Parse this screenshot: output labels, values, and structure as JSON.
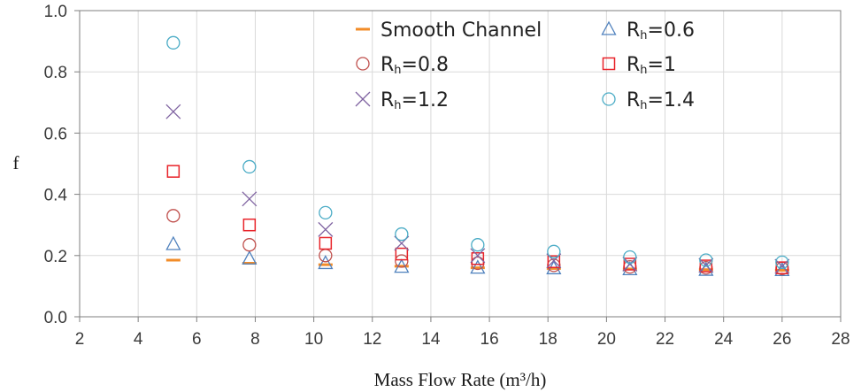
{
  "chart_data": {
    "type": "scatter",
    "title": "",
    "xlabel": "Mass Flow Rate (m³/h)",
    "ylabel": "f",
    "xlim": [
      2,
      28
    ],
    "ylim": [
      0.0,
      1.0
    ],
    "xticks": [
      "2",
      "4",
      "6",
      "8",
      "10",
      "12",
      "14",
      "16",
      "18",
      "20",
      "22",
      "24",
      "26",
      "28"
    ],
    "yticks": [
      "0.0",
      "0.2",
      "0.4",
      "0.6",
      "0.8",
      "1.0"
    ],
    "grid": true,
    "legend_position": "top-right",
    "x": [
      5.2,
      7.8,
      10.4,
      13.0,
      15.6,
      18.2,
      20.8,
      23.4,
      26.0
    ],
    "series": [
      {
        "name": "Smooth Channel",
        "marker": "dash",
        "color": "#F28C28",
        "values": [
          0.185,
          0.175,
          0.17,
          0.165,
          0.16,
          0.158,
          0.156,
          0.154,
          0.152
        ]
      },
      {
        "name": "Rh=0.6",
        "marker": "triangle",
        "color": "#4F81BD",
        "values": [
          0.237,
          0.19,
          0.175,
          0.163,
          0.16,
          0.158,
          0.155,
          0.153,
          0.152
        ]
      },
      {
        "name": "Rh=0.8",
        "marker": "circle",
        "color": "#C0504D",
        "values": [
          0.33,
          0.235,
          0.2,
          0.182,
          0.175,
          0.168,
          0.163,
          0.16,
          0.158
        ]
      },
      {
        "name": "Rh=1",
        "marker": "square",
        "color": "#E8232A",
        "values": [
          0.475,
          0.3,
          0.24,
          0.205,
          0.19,
          0.18,
          0.172,
          0.166,
          0.16
        ]
      },
      {
        "name": "Rh=1.2",
        "marker": "cross",
        "color": "#8064A2",
        "values": [
          0.67,
          0.385,
          0.285,
          0.24,
          0.2,
          0.183,
          0.172,
          0.168,
          0.165
        ]
      },
      {
        "name": "Rh=1.4",
        "marker": "circle",
        "color": "#4BACC6",
        "values": [
          0.895,
          0.49,
          0.34,
          0.27,
          0.235,
          0.213,
          0.195,
          0.185,
          0.178
        ]
      }
    ],
    "legend": [
      {
        "main": "Smooth Channel",
        "sub": "",
        "rest": ""
      },
      {
        "main": "R",
        "sub": "h",
        "rest": "=0.6"
      },
      {
        "main": "R",
        "sub": "h",
        "rest": "=0.8"
      },
      {
        "main": "R",
        "sub": "h",
        "rest": "=1"
      },
      {
        "main": "R",
        "sub": "h",
        "rest": "=1.2"
      },
      {
        "main": "R",
        "sub": "h",
        "rest": "=1.4"
      }
    ]
  }
}
